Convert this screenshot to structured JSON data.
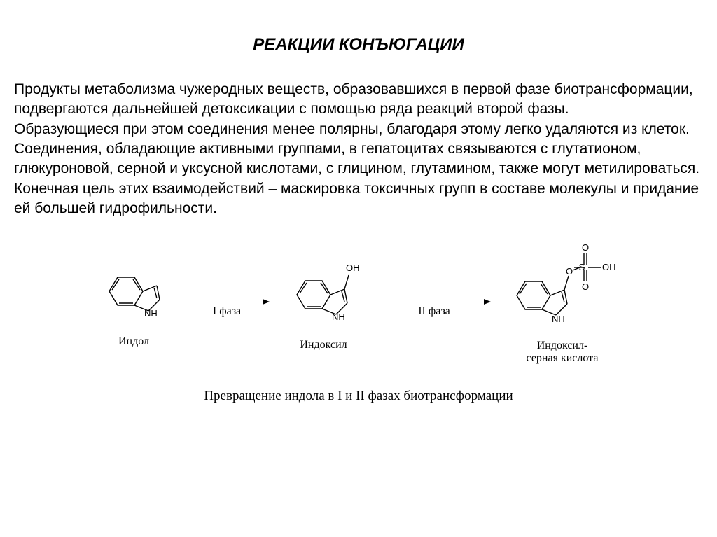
{
  "title": "РЕАКЦИИ КОНЪЮГАЦИИ",
  "paragraph": "Продукты метаболизма чужеродных веществ, образовавшихся в первой фазе биотрансформации, подвергаются дальнейшей детоксикации с помощью ряда реакций второй фазы.\nОбразующиеся при этом соединения менее полярны, благодаря этому легко удаляются из клеток. Соединения, обладающие активными группами, в гепатоцитах связываются с глутатионом, глюкуроновой, серной и уксусной кислотами, с глицином, глутамином, также могут метилироваться. Конечная цель этих взаимодействий – маскировка токсичных групп в составе молекулы и придание ей большей гидрофильности.",
  "diagram": {
    "molecules": [
      {
        "name": "Индол"
      },
      {
        "name": "Индоксил"
      },
      {
        "name": "Индоксил-\nсерная кислота"
      }
    ],
    "arrows": [
      {
        "label": "I фаза",
        "width": 120
      },
      {
        "label": "II фаза",
        "width": 160
      }
    ],
    "caption": "Превращение индола в I и II фазах биотрансформации",
    "atom_labels": {
      "nh": "NH",
      "oh": "OH",
      "o": "O",
      "s": "S"
    },
    "colors": {
      "stroke": "#000000",
      "background": "#ffffff"
    }
  }
}
